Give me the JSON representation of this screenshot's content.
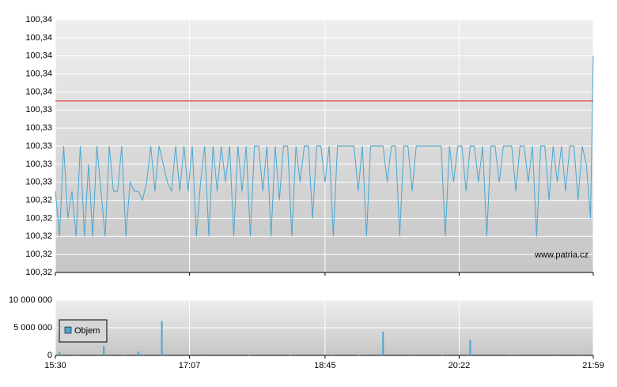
{
  "chart_data": [
    {
      "type": "line",
      "annotation": "www.patria.cz",
      "xlim": [
        930,
        1319
      ],
      "x": [
        930,
        933,
        936,
        939,
        942,
        945,
        948,
        951,
        954,
        957,
        960,
        963,
        966,
        969,
        972,
        975,
        978,
        981,
        984,
        987,
        990,
        993,
        996,
        999,
        1002,
        1005,
        1008,
        1011,
        1014,
        1017,
        1020,
        1023,
        1026,
        1029,
        1032,
        1035,
        1038,
        1041,
        1044,
        1047,
        1050,
        1053,
        1056,
        1059,
        1062,
        1065,
        1068,
        1071,
        1074,
        1077,
        1080,
        1083,
        1086,
        1089,
        1092,
        1095,
        1098,
        1101,
        1104,
        1107,
        1110,
        1113,
        1116,
        1119,
        1122,
        1125,
        1128,
        1131,
        1134,
        1137,
        1140,
        1143,
        1146,
        1149,
        1152,
        1155,
        1158,
        1161,
        1164,
        1167,
        1170,
        1173,
        1176,
        1179,
        1182,
        1185,
        1188,
        1191,
        1194,
        1197,
        1200,
        1203,
        1206,
        1209,
        1212,
        1215,
        1218,
        1221,
        1224,
        1227,
        1230,
        1233,
        1236,
        1239,
        1242,
        1245,
        1248,
        1251,
        1254,
        1257,
        1260,
        1263,
        1266,
        1269,
        1272,
        1275,
        1278,
        1281,
        1284,
        1287,
        1290,
        1293,
        1296,
        1299,
        1302,
        1305,
        1308,
        1311,
        1314,
        1317,
        1319
      ],
      "series": [
        {
          "color": "#4ba6d0",
          "values": [
            100.325,
            100.32,
            100.33,
            100.322,
            100.325,
            100.32,
            100.33,
            100.32,
            100.328,
            100.32,
            100.33,
            100.325,
            100.32,
            100.33,
            100.325,
            100.325,
            100.33,
            100.32,
            100.326,
            100.325,
            100.325,
            100.324,
            100.326,
            100.33,
            100.325,
            100.33,
            100.328,
            100.326,
            100.325,
            100.33,
            100.325,
            100.33,
            100.325,
            100.33,
            100.32,
            100.326,
            100.33,
            100.32,
            100.33,
            100.325,
            100.33,
            100.326,
            100.33,
            100.32,
            100.33,
            100.325,
            100.33,
            100.32,
            100.33,
            100.33,
            100.325,
            100.33,
            100.32,
            100.33,
            100.324,
            100.33,
            100.33,
            100.32,
            100.33,
            100.326,
            100.33,
            100.33,
            100.322,
            100.33,
            100.33,
            100.326,
            100.33,
            100.32,
            100.33,
            100.33,
            100.33,
            100.33,
            100.33,
            100.325,
            100.33,
            100.32,
            100.33,
            100.33,
            100.33,
            100.33,
            100.326,
            100.33,
            100.33,
            100.32,
            100.33,
            100.33,
            100.325,
            100.33,
            100.33,
            100.33,
            100.33,
            100.33,
            100.33,
            100.33,
            100.32,
            100.33,
            100.326,
            100.33,
            100.33,
            100.325,
            100.33,
            100.33,
            100.326,
            100.33,
            100.32,
            100.33,
            100.33,
            100.326,
            100.33,
            100.33,
            100.33,
            100.325,
            100.33,
            100.33,
            100.326,
            100.33,
            100.32,
            100.33,
            100.33,
            100.324,
            100.33,
            100.326,
            100.33,
            100.325,
            100.33,
            100.33,
            100.324,
            100.33,
            100.328,
            100.322,
            100.34
          ]
        }
      ],
      "reference_line": {
        "value": 100.335,
        "color": "#d02020"
      },
      "ylim": [
        100.316,
        100.344
      ],
      "yticks": [
        {
          "value": 100.316,
          "label": "100,32"
        },
        {
          "value": 100.318,
          "label": "100,32"
        },
        {
          "value": 100.32,
          "label": "100,32"
        },
        {
          "value": 100.322,
          "label": "100,32"
        },
        {
          "value": 100.324,
          "label": "100,32"
        },
        {
          "value": 100.326,
          "label": "100,33"
        },
        {
          "value": 100.328,
          "label": "100,33"
        },
        {
          "value": 100.33,
          "label": "100,33"
        },
        {
          "value": 100.332,
          "label": "100,33"
        },
        {
          "value": 100.334,
          "label": "100,33"
        },
        {
          "value": 100.336,
          "label": "100,34"
        },
        {
          "value": 100.338,
          "label": "100,34"
        },
        {
          "value": 100.34,
          "label": "100,34"
        },
        {
          "value": 100.342,
          "label": "100,34"
        },
        {
          "value": 100.344,
          "label": "100,34"
        }
      ],
      "grid": true
    },
    {
      "type": "bar",
      "xlim": [
        930,
        1319
      ],
      "xticks": [
        {
          "value": 930,
          "label": "15:30"
        },
        {
          "value": 1027,
          "label": "17:07"
        },
        {
          "value": 1125,
          "label": "18:45"
        },
        {
          "value": 1222,
          "label": "20:22"
        },
        {
          "value": 1319,
          "label": "21:59"
        }
      ],
      "x": [
        933,
        945,
        965,
        980,
        990,
        1007,
        1040,
        1070,
        1100,
        1130,
        1150,
        1167,
        1190,
        1210,
        1230,
        1260,
        1290,
        1310
      ],
      "series": [
        {
          "name": "Objem",
          "color": "#4ba6d0",
          "values": [
            600000,
            200000,
            1700000,
            150000,
            700000,
            6200000,
            250000,
            150000,
            100000,
            150000,
            100000,
            4300000,
            200000,
            100000,
            2800000,
            150000,
            250000,
            200000
          ]
        }
      ],
      "ylim": [
        0,
        10000000
      ],
      "yticks": [
        {
          "value": 0,
          "label": "0"
        },
        {
          "value": 5000000,
          "label": "5 000 000"
        },
        {
          "value": 10000000,
          "label": "10 000 000"
        }
      ],
      "grid": true
    }
  ]
}
